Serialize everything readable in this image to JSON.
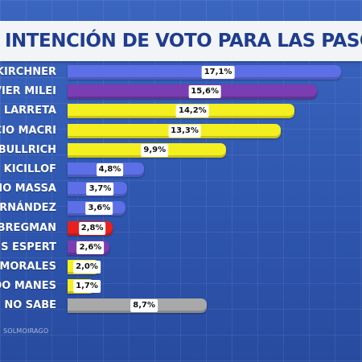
{
  "header": {
    "title": "INTENCIÓN DE VOTO PARA LAS PASO"
  },
  "footer": {
    "source": "SOLMOIRAGO"
  },
  "colors": {
    "blue": "#5c6fe6",
    "purple": "#7b3db2",
    "yellow": "#f4ef1f",
    "red": "#e8211e",
    "gray": "#a9a9a9"
  },
  "chart_data": {
    "type": "bar",
    "orientation": "horizontal",
    "title": "INTENCIÓN DE VOTO PARA LAS PASO",
    "unit": "%",
    "xlim": [
      0,
      18.4
    ],
    "categories": [
      "KIRCHNER",
      "VIER MILEI",
      "LARRETA",
      "CIO MACRI",
      "BULLRICH",
      "KICILLOF",
      "GIO MASSA",
      "RNÁNDEZ",
      "BREGMAN",
      "S ESPERT",
      "MORALES",
      "DO MANES",
      "NO SABE"
    ],
    "values": [
      17.1,
      15.6,
      14.2,
      13.3,
      9.9,
      4.8,
      3.7,
      3.6,
      2.8,
      2.6,
      2.0,
      1.7,
      8.7
    ],
    "value_labels": [
      "17,1%",
      "15,6%",
      "14,2%",
      "13,3%",
      "9,9%",
      "4,8%",
      "3,7%",
      "3,6%",
      "2,8%",
      "2,6%",
      "2,0%",
      "1,7%",
      "8,7%"
    ],
    "bar_colors": [
      "blue",
      "purple",
      "yellow",
      "yellow",
      "yellow",
      "blue",
      "blue",
      "blue",
      "red",
      "purple",
      "yellow",
      "yellow",
      "gray"
    ]
  }
}
